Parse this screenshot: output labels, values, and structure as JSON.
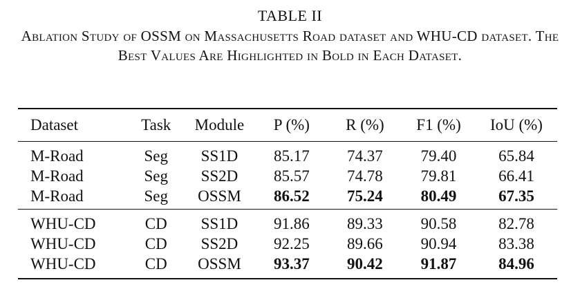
{
  "caption": {
    "table_number": "TABLE II",
    "text": "Ablation Study of OSSM on Massachusetts Road dataset and WHU-CD dataset. The Best Values Are Highlighted in Bold in Each Dataset."
  },
  "table": {
    "headers": [
      "Dataset",
      "Task",
      "Module",
      "P (%)",
      "R (%)",
      "F1 (%)",
      "IoU (%)"
    ],
    "groups": [
      {
        "rows": [
          {
            "dataset": "M-Road",
            "task": "Seg",
            "module": "SS1D",
            "p": "85.17",
            "r": "74.37",
            "f1": "79.40",
            "iou": "65.84"
          },
          {
            "dataset": "M-Road",
            "task": "Seg",
            "module": "SS2D",
            "p": "85.57",
            "r": "74.78",
            "f1": "79.81",
            "iou": "66.41"
          },
          {
            "dataset": "M-Road",
            "task": "Seg",
            "module": "OSSM",
            "p": "86.52",
            "r": "75.24",
            "f1": "80.49",
            "iou": "67.35"
          }
        ]
      },
      {
        "rows": [
          {
            "dataset": "WHU-CD",
            "task": "CD",
            "module": "SS1D",
            "p": "91.86",
            "r": "89.33",
            "f1": "90.58",
            "iou": "82.78"
          },
          {
            "dataset": "WHU-CD",
            "task": "CD",
            "module": "SS2D",
            "p": "92.25",
            "r": "89.66",
            "f1": "90.94",
            "iou": "83.38"
          },
          {
            "dataset": "WHU-CD",
            "task": "CD",
            "module": "OSSM",
            "p": "93.37",
            "r": "90.42",
            "f1": "91.87",
            "iou": "84.96"
          }
        ]
      }
    ]
  }
}
